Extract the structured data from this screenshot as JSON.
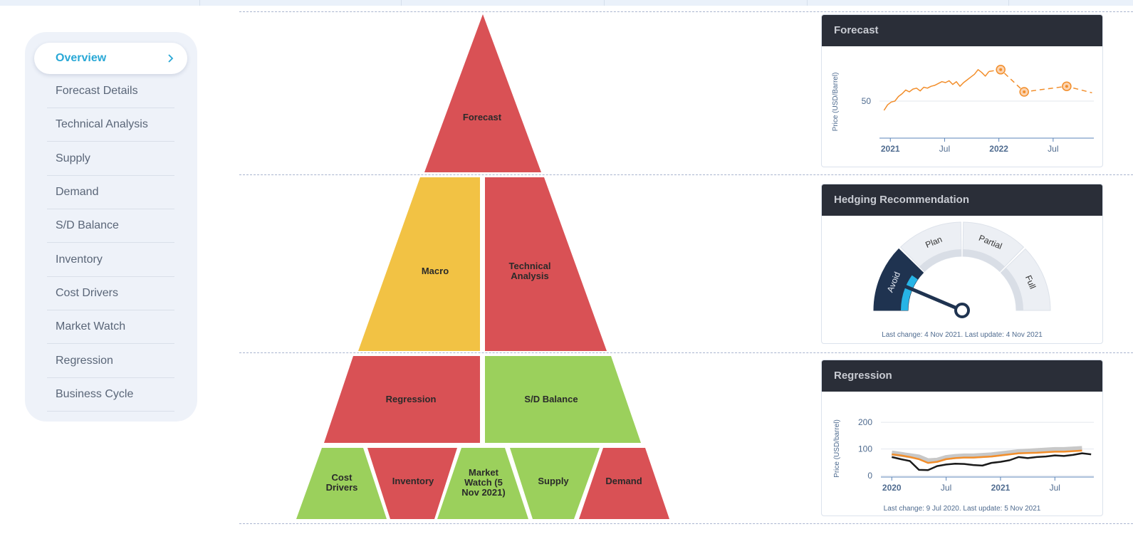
{
  "nav": {
    "items": [
      "Overview",
      "Forecast Details",
      "Technical Analysis",
      "Supply",
      "Demand",
      "S/D Balance",
      "Inventory",
      "Cost Drivers",
      "Market Watch",
      "Regression",
      "Business Cycle"
    ]
  },
  "pyramid": {
    "tiers": [
      [
        {
          "label": "Forecast",
          "color": "#d95155"
        }
      ],
      [
        {
          "label": "Macro",
          "color": "#f2c244"
        },
        {
          "label": "Technical Analysis",
          "color": "#d95155"
        }
      ],
      [
        {
          "label": "Regression",
          "color": "#d95155"
        },
        {
          "label": "S/D Balance",
          "color": "#9bd05c"
        }
      ],
      [
        {
          "label": "Cost Drivers",
          "color": "#9bd05c"
        },
        {
          "label": "Inventory",
          "color": "#d95155"
        },
        {
          "label": "Market Watch (5 Nov 2021)",
          "color": "#9bd05c"
        },
        {
          "label": "Supply",
          "color": "#9bd05c"
        },
        {
          "label": "Demand",
          "color": "#d95155"
        }
      ]
    ]
  },
  "cards": {
    "forecast": {
      "title": "Forecast",
      "chart": {
        "type": "line",
        "y_label": "Price (USD/Barrel)",
        "xlim": [
          -1.2,
          22.5
        ],
        "xticks": [
          {
            "value": 0,
            "label": "2021"
          },
          {
            "value": 6,
            "label": "Jul"
          },
          {
            "value": 12,
            "label": "2022"
          },
          {
            "value": 18,
            "label": "Jul"
          }
        ],
        "ylim": [
          10,
          100
        ],
        "yticks": [
          50
        ],
        "grid": true,
        "series": [
          {
            "color": "#f28e2b",
            "x": [
              -0.7,
              -0.3,
              0.1,
              0.5,
              0.9,
              1.3,
              1.7,
              2.1,
              2.5,
              2.9,
              3.3,
              3.7,
              4.1,
              4.5,
              4.9,
              5.3,
              5.7,
              6.1,
              6.5,
              6.9,
              7.3,
              7.7,
              8.1,
              8.5,
              8.9,
              9.3,
              9.7,
              10.1,
              10.5,
              10.9
            ],
            "values": [
              40,
              46,
              49,
              50,
              55,
              58,
              62,
              60,
              63,
              64,
              61,
              65,
              64,
              66,
              67,
              69,
              71,
              70,
              72,
              68,
              71,
              66,
              70,
              73,
              76,
              79,
              84,
              81,
              77,
              82
            ]
          },
          {
            "color": "#f28e2b",
            "dashed": true,
            "x": [
              10.9,
              12.2,
              14.8,
              19.5,
              22.3
            ],
            "values": [
              82,
              84,
              60,
              66,
              59
            ]
          },
          {
            "color": "#f28e2b",
            "marker": true,
            "x": [
              12.2,
              14.8,
              19.5
            ],
            "values": [
              84,
              60,
              66
            ]
          }
        ]
      }
    },
    "hedging": {
      "title": "Hedging Recommendation",
      "gauge": {
        "segments": [
          "Avoid",
          "Plan",
          "Partial",
          "Full"
        ]
      },
      "footer": "Last change: 4 Nov 2021. Last update: 4 Nov 2021"
    },
    "regression": {
      "title": "Regression",
      "chart": {
        "type": "line",
        "y_label": "Price (USD/barrel)",
        "xlim": [
          -1.2,
          22.3
        ],
        "xticks": [
          {
            "value": 0,
            "label": "2020"
          },
          {
            "value": 6,
            "label": "Jul"
          },
          {
            "value": 12,
            "label": "2021"
          },
          {
            "value": 18,
            "label": "Jul"
          }
        ],
        "ylim": [
          -5,
          215
        ],
        "yticks": [
          0,
          100,
          200
        ],
        "grid": true,
        "series": [
          {
            "color": "#c8c8c8",
            "width": 7,
            "x": [
              0,
              1,
              2,
              3,
              4,
              5,
              6,
              7,
              8,
              9,
              10,
              11,
              12,
              13,
              14,
              15,
              16,
              17,
              18,
              19,
              20,
              21
            ],
            "values": [
              85,
              80,
              75,
              70,
              56,
              58,
              68,
              72,
              74,
              74,
              76,
              78,
              82,
              86,
              90,
              92,
              94,
              96,
              98,
              98,
              100,
              102
            ]
          },
          {
            "color": "#f28e2b",
            "width": 2.5,
            "x": [
              0,
              1,
              2,
              3,
              4,
              5,
              6,
              7,
              8,
              9,
              10,
              11,
              12,
              13,
              14,
              15,
              16,
              17,
              18,
              19,
              20,
              21
            ],
            "values": [
              80,
              76,
              70,
              62,
              48,
              52,
              62,
              66,
              68,
              68,
              70,
              72,
              76,
              80,
              84,
              85,
              86,
              88,
              90,
              90,
              92,
              94
            ]
          },
          {
            "color": "#1a1a1a",
            "width": 2.5,
            "x": [
              0,
              1,
              2,
              3,
              4,
              5,
              6,
              7,
              8,
              9,
              10,
              11,
              12,
              13,
              14,
              15,
              16,
              17,
              18,
              19,
              20,
              21,
              22
            ],
            "values": [
              70,
              62,
              55,
              22,
              21,
              36,
              42,
              45,
              44,
              40,
              38,
              48,
              52,
              58,
              70,
              66,
              70,
              72,
              76,
              74,
              78,
              84,
              80
            ]
          }
        ]
      },
      "footer": "Last change: 9 Jul 2020. Last update: 5 Nov 2021"
    }
  }
}
